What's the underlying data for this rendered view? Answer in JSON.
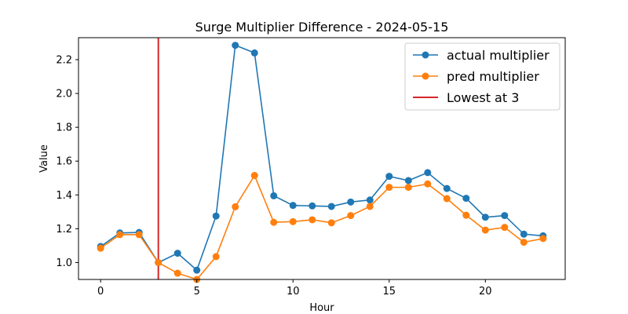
{
  "chart_data": {
    "type": "line",
    "title": "Surge Multiplier Difference - 2024-05-15",
    "xlabel": "Hour",
    "ylabel": "Value",
    "xlim": [
      -1.15,
      24.15
    ],
    "ylim": [
      0.9,
      2.33
    ],
    "xticks": [
      0,
      5,
      10,
      15,
      20
    ],
    "yticks": [
      1.0,
      1.2,
      1.4,
      1.6,
      1.8,
      2.0,
      2.2
    ],
    "grid": false,
    "legend_position": "top-right",
    "x": [
      0,
      1,
      2,
      3,
      4,
      5,
      6,
      7,
      8,
      9,
      10,
      11,
      12,
      13,
      14,
      15,
      16,
      17,
      18,
      19,
      20,
      21,
      22,
      23
    ],
    "series": [
      {
        "name": "actual multiplier",
        "color": "#1f77b4",
        "values": [
          1.095,
          1.175,
          1.178,
          1.0,
          1.055,
          0.955,
          1.275,
          2.285,
          2.24,
          1.395,
          1.338,
          1.335,
          1.332,
          1.358,
          1.37,
          1.51,
          1.485,
          1.532,
          1.438,
          1.38,
          1.268,
          1.278,
          1.168,
          1.158
        ]
      },
      {
        "name": "pred multiplier",
        "color": "#ff7f0e",
        "values": [
          1.085,
          1.165,
          1.165,
          1.0,
          0.937,
          0.9,
          1.035,
          1.33,
          1.515,
          1.238,
          1.242,
          1.253,
          1.235,
          1.278,
          1.332,
          1.445,
          1.445,
          1.465,
          1.378,
          1.28,
          1.192,
          1.208,
          1.12,
          1.142
        ]
      }
    ],
    "vline": {
      "x": 3,
      "name": "Lowest at 3",
      "color": "#d62728"
    }
  }
}
